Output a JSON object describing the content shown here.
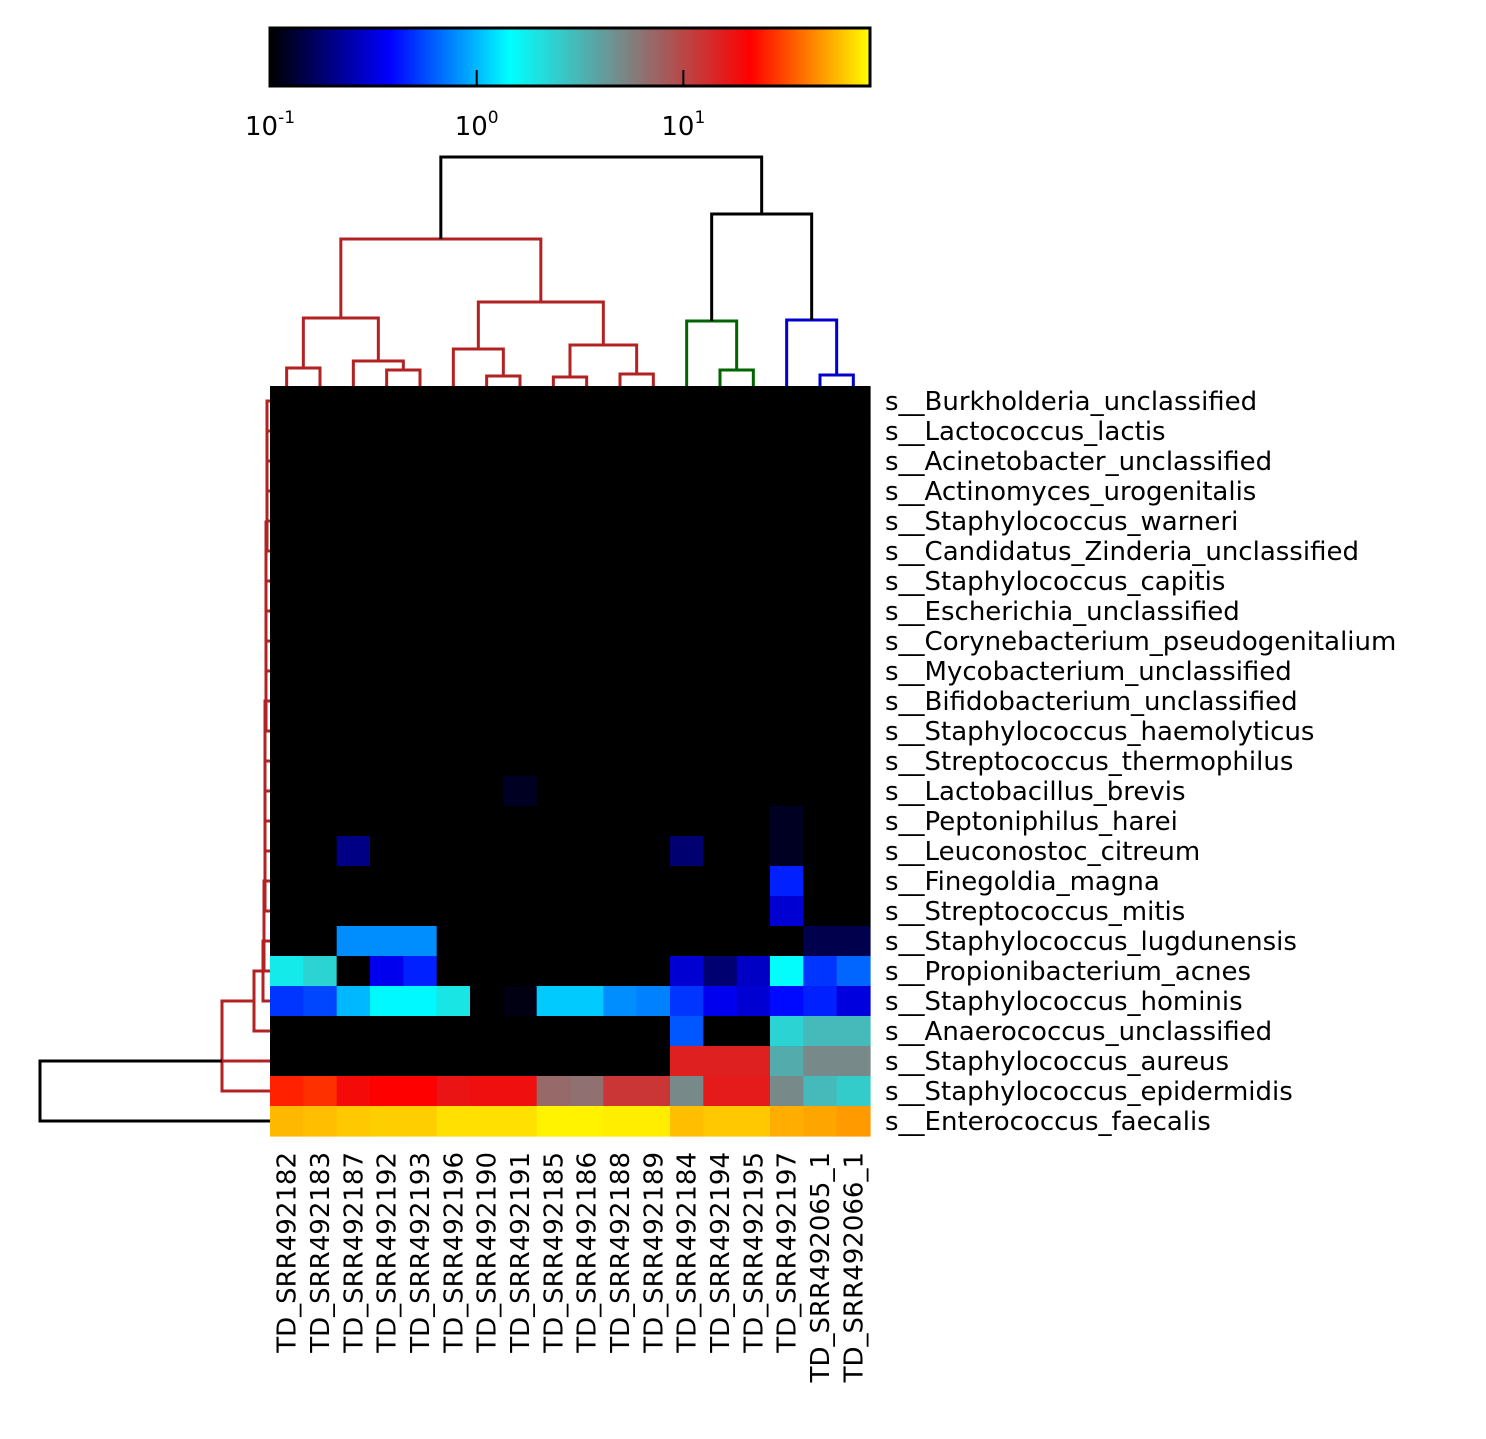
{
  "chart_data": {
    "type": "heatmap",
    "title": "",
    "xlabel": "",
    "ylabel": "",
    "scale": "log",
    "colorbar": {
      "position": "top",
      "range": [
        0.1,
        80
      ],
      "ticks": [
        {
          "base": "10",
          "exp": "-1",
          "value": 0.1
        },
        {
          "base": "10",
          "exp": "0",
          "value": 1
        },
        {
          "base": "10",
          "exp": "1",
          "value": 10
        }
      ],
      "colormap": [
        "#000000",
        "#0000ff",
        "#00ffff",
        "#808080",
        "#ff0000",
        "#ffff00"
      ]
    },
    "columns": [
      "TD_SRR492182",
      "TD_SRR492183",
      "TD_SRR492187",
      "TD_SRR492192",
      "TD_SRR492193",
      "TD_SRR492196",
      "TD_SRR492190",
      "TD_SRR492191",
      "TD_SRR492185",
      "TD_SRR492186",
      "TD_SRR492188",
      "TD_SRR492189",
      "TD_SRR492184",
      "TD_SRR492194",
      "TD_SRR492195",
      "TD_SRR492197",
      "TD_SRR492065_1",
      "TD_SRR492066_1"
    ],
    "rows": [
      "s__Burkholderia_unclassified",
      "s__Lactococcus_lactis",
      "s__Acinetobacter_unclassified",
      "s__Actinomyces_urogenitalis",
      "s__Staphylococcus_warneri",
      "s__Candidatus_Zinderia_unclassified",
      "s__Staphylococcus_capitis",
      "s__Escherichia_unclassified",
      "s__Corynebacterium_pseudogenitalium",
      "s__Mycobacterium_unclassified",
      "s__Bifidobacterium_unclassified",
      "s__Staphylococcus_haemolyticus",
      "s__Streptococcus_thermophilus",
      "s__Lactobacillus_brevis",
      "s__Peptoniphilus_harei",
      "s__Leuconostoc_citreum",
      "s__Finegoldia_magna",
      "s__Streptococcus_mitis",
      "s__Staphylococcus_lugdunensis",
      "s__Propionibacterium_acnes",
      "s__Staphylococcus_hominis",
      "s__Anaerococcus_unclassified",
      "s__Staphylococcus_aureus",
      "s__Staphylococcus_epidermidis",
      "s__Enterococcus_faecalis"
    ],
    "values": [
      [
        0.1,
        0.1,
        0.1,
        0.1,
        0.1,
        0.1,
        0.1,
        0.1,
        0.1,
        0.1,
        0.1,
        0.1,
        0.1,
        0.1,
        0.1,
        0.1,
        0.1,
        0.1
      ],
      [
        0.1,
        0.1,
        0.1,
        0.1,
        0.1,
        0.1,
        0.1,
        0.1,
        0.1,
        0.1,
        0.1,
        0.1,
        0.1,
        0.1,
        0.1,
        0.1,
        0.1,
        0.1
      ],
      [
        0.1,
        0.1,
        0.1,
        0.1,
        0.1,
        0.1,
        0.1,
        0.1,
        0.1,
        0.1,
        0.1,
        0.1,
        0.1,
        0.1,
        0.1,
        0.1,
        0.1,
        0.1
      ],
      [
        0.1,
        0.1,
        0.1,
        0.1,
        0.1,
        0.1,
        0.1,
        0.1,
        0.1,
        0.1,
        0.1,
        0.1,
        0.1,
        0.1,
        0.1,
        0.1,
        0.1,
        0.1
      ],
      [
        0.1,
        0.1,
        0.1,
        0.1,
        0.1,
        0.1,
        0.1,
        0.1,
        0.1,
        0.1,
        0.1,
        0.1,
        0.1,
        0.1,
        0.1,
        0.1,
        0.1,
        0.1
      ],
      [
        0.1,
        0.1,
        0.1,
        0.1,
        0.1,
        0.1,
        0.1,
        0.1,
        0.1,
        0.1,
        0.1,
        0.1,
        0.1,
        0.1,
        0.1,
        0.1,
        0.1,
        0.1
      ],
      [
        0.1,
        0.1,
        0.1,
        0.1,
        0.1,
        0.1,
        0.1,
        0.1,
        0.1,
        0.1,
        0.1,
        0.1,
        0.1,
        0.1,
        0.1,
        0.1,
        0.1,
        0.1
      ],
      [
        0.1,
        0.1,
        0.1,
        0.1,
        0.1,
        0.1,
        0.1,
        0.1,
        0.1,
        0.1,
        0.1,
        0.1,
        0.1,
        0.1,
        0.1,
        0.1,
        0.1,
        0.1
      ],
      [
        0.1,
        0.1,
        0.1,
        0.1,
        0.1,
        0.1,
        0.1,
        0.1,
        0.1,
        0.1,
        0.1,
        0.1,
        0.1,
        0.1,
        0.1,
        0.1,
        0.1,
        0.1
      ],
      [
        0.1,
        0.1,
        0.1,
        0.1,
        0.1,
        0.1,
        0.1,
        0.1,
        0.1,
        0.1,
        0.1,
        0.1,
        0.1,
        0.1,
        0.1,
        0.1,
        0.1,
        0.1
      ],
      [
        0.1,
        0.1,
        0.1,
        0.1,
        0.1,
        0.1,
        0.1,
        0.1,
        0.1,
        0.1,
        0.1,
        0.1,
        0.1,
        0.1,
        0.1,
        0.1,
        0.1,
        0.1
      ],
      [
        0.1,
        0.1,
        0.1,
        0.1,
        0.1,
        0.1,
        0.1,
        0.1,
        0.1,
        0.1,
        0.1,
        0.1,
        0.1,
        0.1,
        0.1,
        0.1,
        0.1,
        0.1
      ],
      [
        0.1,
        0.1,
        0.1,
        0.1,
        0.1,
        0.1,
        0.1,
        0.1,
        0.1,
        0.1,
        0.1,
        0.1,
        0.1,
        0.1,
        0.1,
        0.1,
        0.1,
        0.1
      ],
      [
        0.1,
        0.1,
        0.1,
        0.1,
        0.1,
        0.1,
        0.1,
        0.12,
        0.1,
        0.1,
        0.1,
        0.1,
        0.1,
        0.1,
        0.1,
        0.1,
        0.1,
        0.1
      ],
      [
        0.1,
        0.1,
        0.1,
        0.1,
        0.1,
        0.1,
        0.1,
        0.1,
        0.1,
        0.1,
        0.1,
        0.1,
        0.1,
        0.1,
        0.1,
        0.12,
        0.1,
        0.1
      ],
      [
        0.1,
        0.1,
        0.2,
        0.1,
        0.1,
        0.1,
        0.1,
        0.1,
        0.1,
        0.1,
        0.1,
        0.1,
        0.18,
        0.1,
        0.1,
        0.12,
        0.1,
        0.1
      ],
      [
        0.1,
        0.1,
        0.1,
        0.1,
        0.1,
        0.1,
        0.1,
        0.1,
        0.1,
        0.1,
        0.1,
        0.1,
        0.1,
        0.1,
        0.1,
        0.45,
        0.1,
        0.1
      ],
      [
        0.1,
        0.1,
        0.1,
        0.1,
        0.1,
        0.1,
        0.1,
        0.1,
        0.1,
        0.1,
        0.1,
        0.1,
        0.1,
        0.1,
        0.1,
        0.3,
        0.1,
        0.1
      ],
      [
        0.1,
        0.1,
        0.8,
        0.8,
        0.8,
        0.1,
        0.1,
        0.1,
        0.1,
        0.1,
        0.1,
        0.1,
        0.1,
        0.1,
        0.1,
        0.1,
        0.15,
        0.15
      ],
      [
        1.8,
        2.3,
        0.1,
        0.35,
        0.45,
        0.1,
        0.1,
        0.1,
        0.1,
        0.1,
        0.1,
        0.1,
        0.3,
        0.18,
        0.28,
        1.5,
        0.5,
        0.65
      ],
      [
        0.5,
        0.55,
        1.0,
        1.4,
        1.4,
        1.9,
        0.1,
        0.11,
        1.1,
        1.1,
        0.8,
        0.75,
        0.5,
        0.35,
        0.3,
        0.4,
        0.45,
        0.32
      ],
      [
        0.1,
        0.1,
        0.1,
        0.1,
        0.1,
        0.1,
        0.1,
        0.1,
        0.1,
        0.1,
        0.1,
        0.1,
        0.6,
        0.1,
        0.1,
        2.3,
        3.0,
        3.0
      ],
      [
        0.1,
        0.1,
        0.1,
        0.1,
        0.1,
        0.1,
        0.1,
        0.1,
        0.1,
        0.1,
        0.1,
        0.1,
        15,
        15,
        15,
        3.5,
        5,
        5
      ],
      [
        25,
        27,
        19,
        21,
        21,
        17,
        18,
        18,
        7,
        6.5,
        12,
        12,
        5,
        16,
        16,
        5,
        3,
        2.5
      ],
      [
        55,
        57,
        60,
        62,
        62,
        68,
        68,
        68,
        75,
        75,
        73,
        73,
        57,
        60,
        60,
        52,
        50,
        47
      ]
    ],
    "column_dendrogram": {
      "clusters": [
        {
          "color": "#b22222",
          "columns": [
            0,
            11
          ]
        },
        {
          "color": "#006400",
          "columns": [
            12,
            14
          ]
        },
        {
          "color": "#0000cd",
          "columns": [
            15,
            17
          ]
        }
      ],
      "root_color": "#000000"
    },
    "row_dendrogram": {
      "cluster_color": "#b22222",
      "root_color": "#000000"
    }
  }
}
